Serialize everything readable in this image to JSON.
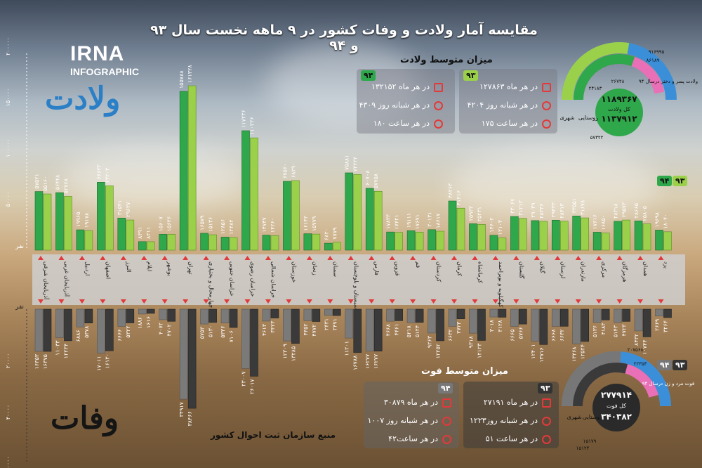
{
  "title": "مقایسه آمار ولادت و وفات کشور در ۹ ماهه نخست سال ۹۳ و ۹۴",
  "logo": {
    "name": "IRNA",
    "sub": "INFOGRAPHIC"
  },
  "labels": {
    "births": "ولادت",
    "deaths": "وفات",
    "source": "منبع سازمان ثبت احوال کشور",
    "unit": "نفر"
  },
  "years": {
    "y93": "۹۳",
    "y94": "۹۴"
  },
  "colors": {
    "birth93": "#9bd14a",
    "birth94": "#2ea84a",
    "death93": "#3a3a3a",
    "death94": "#7a7a7a",
    "province_band": "#cfcfcf",
    "marker": "#e23a3a",
    "urban": "#3a8fd6",
    "rural": "#e96fb7"
  },
  "birth_avg": {
    "heading": "میزان متوسط ولادت",
    "y93": {
      "month": "در هر ماه ۱۲۷۸۶۳",
      "day": "در هر شبانه روز ۴۲۰۴",
      "hour": "در هر ساعت ۱۷۵"
    },
    "y94": {
      "month": "در هر ماه ۱۳۲۱۵۲",
      "day": "در هر شبانه روز ۴۳۰۹",
      "hour": "در هر ساعت ۱۸۰"
    }
  },
  "death_avg": {
    "heading": "میزان متوسط فوت",
    "y93": {
      "month": "در هر ماه ۲۷۱۹۱",
      "day": "در هر شبانه روز۱۲۲۳",
      "hour": "در هر ساعت ۵۱"
    },
    "y94": {
      "month": "در هر ماه ۳۰۸۷۹",
      "day": "در هر شبانه روز ۱۰۰۷",
      "hour": "در هر ساعت۴۲"
    }
  },
  "birth_donut": {
    "total_label": "کل ولادت",
    "total_93": "۱۱۸۹۳۶۷",
    "total_94": "۱۱۳۷۹۱۲",
    "urban_label": "شهری",
    "rural_label": "روستایی",
    "gender_label": "ولادت پسر و دختر درسال ۹۴",
    "ring_values": [
      "۹۱۶۹۹۵",
      "۸۶۱۸۹",
      "۲۴۱۸۳",
      "۲۶۷۲۸",
      "۵۷۳۲۲"
    ]
  },
  "death_donut": {
    "total_label": "کل فوت",
    "total_93": "۲۷۷۹۱۴",
    "total_94": "۳۴۰۳۸۲",
    "urban_label": "شهری",
    "rural_label": "روستایی",
    "gender_label": "فوت مرد و زن درسال ۹۴",
    "ring_values": [
      "۲۰۷۵۶۸",
      "۲۲۳۵۳",
      "۱۵۱۷۹",
      "۱۵۱۲۴"
    ]
  },
  "chart_data": {
    "type": "bar",
    "categories": [
      "آذربایجان شرقی",
      "آذربایجان غربی",
      "اردبیل",
      "اصفهان",
      "البرز",
      "ایلام",
      "بوشهر",
      "تهران",
      "چهارمحال و بختیاری",
      "خراسان جنوبی",
      "خراسان رضوی",
      "خراسان شمالی",
      "خوزستان",
      "زنجان",
      "سمنان",
      "سیستان و بلوچستان",
      "فارس",
      "قزوین",
      "قم",
      "کردستان",
      "کرمان",
      "کرمانشاه",
      "کهگیلویه و بویراحمد",
      "گلستان",
      "گیلان",
      "لرستان",
      "مازندران",
      "مرکزی",
      "هرمزگان",
      "همدان",
      "یزد"
    ],
    "series": [
      {
        "name": "۹۳",
        "kind": "births",
        "values": [
          57521,
          56448,
          19965,
          66633,
          31541,
          8391,
          15607,
          155788,
          16579,
          12856,
          117236,
          14747,
          67560,
          16143,
          6820,
          75881,
          60708,
          17833,
          19111,
          20131,
          48263,
          25933,
          14602,
          33067,
          29039,
          29433,
          33551,
          17616,
          28318,
          28665,
          19698
        ]
      },
      {
        "name": "۹۴",
        "kind": "births",
        "values": [
          55160,
          52768,
          19178,
          63203,
          29627,
          8311,
          15636,
          161328,
          15136,
          12484,
          110236,
          14260,
          68290,
          15779,
          7779,
          74224,
          57758,
          17421,
          17671,
          18617,
          41216,
          25231,
          12103,
          31213,
          28336,
          28413,
          31678,
          16850,
          29573,
          25805,
          18040
        ]
      },
      {
        "name": "۹۳",
        "kind": "deaths",
        "values": [
          16353,
          11033,
          6886,
          17011,
          6666,
          1886,
          4072,
          34917,
          5753,
          5336,
          23007,
          4613,
          12309,
          4452,
          2431,
          11201,
          16277,
          4668,
          5218,
          9263,
          6632,
          9318,
          3018,
          6665,
          12401,
          6668,
          13468,
          5136,
          5143,
          8432,
          2669
        ]
      },
      {
        "name": "۹۴",
        "kind": "deaths",
        "values": [
          16375,
          12234,
          5378,
          16130,
          5322,
          1616,
          4702,
          38466,
          5130,
          7106,
          26017,
          3423,
          13285,
          4772,
          2471,
          16788,
          16277,
          4461,
          5124,
          12252,
          3723,
          12123,
          3128,
          5766,
          13716,
          6632,
          12524,
          4183,
          4723,
          10744,
          3264
        ]
      }
    ],
    "yticks_births": [
      "۵۰۰۰۰",
      "۱۰۰۰۰۰",
      "۱۵۰۰۰۰",
      "۲۰۰۰۰۰"
    ],
    "yticks_deaths": [
      "۲۰۰۰۰",
      "۴۰۰۰۰",
      "۶۰۰۰۰"
    ],
    "ylim_births": [
      0,
      200000
    ],
    "ylim_deaths": [
      0,
      60000
    ]
  }
}
